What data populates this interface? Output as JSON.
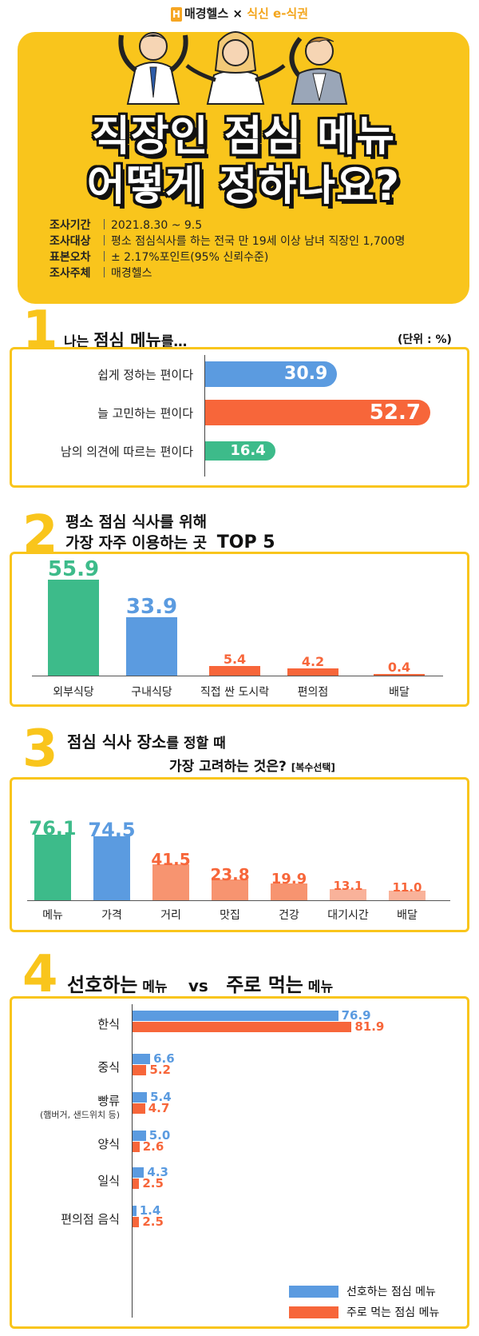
{
  "header": {
    "brand_left": "매경헬스",
    "brand_x": "×",
    "brand_right": "식신 e-식권",
    "title_line1": "직장인 점심 메뉴",
    "title_line2": "어떻게 정하나요?",
    "info": [
      {
        "key": "조사기간",
        "value": "2021.8.30 ~ 9.5"
      },
      {
        "key": "조사대상",
        "value": "평소 점심식사를 하는 전국 만 19세 이상 남녀 직장인 1,700명"
      },
      {
        "key": "표본오차",
        "value": "± 2.17%포인트(95% 신뢰수준)"
      },
      {
        "key": "조사주체",
        "value": "매경헬스"
      }
    ]
  },
  "section1": {
    "number": "1",
    "title_a": "나는 ",
    "title_b": "점심 메뉴",
    "title_c": "를…",
    "unit": "(단위 : %)"
  },
  "section2": {
    "number": "2",
    "title_line1": "평소 점심 식사를 위해",
    "title_line2": "가장 자주 이용하는 곳",
    "title_top": "TOP 5"
  },
  "section3": {
    "number": "3",
    "title_a": "점심 식사 장소",
    "title_b": "를 정할 때",
    "title_line2": "가장 고려하는 것은?",
    "title_note": "[복수선택]"
  },
  "section4": {
    "number": "4",
    "title_a": "선호하는",
    "title_b": " 메뉴",
    "title_vs": "vs",
    "title_c": "주로 먹는",
    "title_d": " 메뉴"
  },
  "chart_data": [
    {
      "type": "bar",
      "orientation": "horizontal",
      "categories": [
        "쉽게 정하는 편이다",
        "늘 고민하는 편이다",
        "남의 의견에 따르는 편이다"
      ],
      "values": [
        30.9,
        52.7,
        16.4
      ],
      "colors": [
        "#5b9be0",
        "#f7663a",
        "#3dbb8a"
      ],
      "title": "나는 점심 메뉴를…",
      "unit": "(단위 : %)"
    },
    {
      "type": "bar",
      "categories": [
        "외부식당",
        "구내식당",
        "직접 싼 도시락",
        "편의점",
        "배달"
      ],
      "values": [
        55.9,
        33.9,
        5.4,
        4.2,
        0.4
      ],
      "colors": [
        "#3dbb8a",
        "#5b9be0",
        "#f7663a",
        "#f7663a",
        "#f7663a"
      ],
      "title": "평소 점심 식사를 위해 가장 자주 이용하는 곳 TOP 5"
    },
    {
      "type": "bar",
      "categories": [
        "메뉴",
        "가격",
        "거리",
        "맛집",
        "건강",
        "대기시간",
        "배달"
      ],
      "values": [
        76.1,
        74.5,
        41.5,
        23.8,
        19.9,
        13.1,
        11.0
      ],
      "colors": [
        "#3dbb8a",
        "#5b9be0",
        "#f79470",
        "#f79470",
        "#f79470",
        "#f9b29a",
        "#f9b29a"
      ],
      "label_colors": [
        "#3dbb8a",
        "#5b9be0",
        "#f7663a",
        "#f7663a",
        "#f7663a",
        "#f7663a",
        "#f7663a"
      ],
      "title": "점심 식사 장소를 정할 때 가장 고려하는 것은? [복수선택]"
    },
    {
      "type": "bar",
      "orientation": "horizontal",
      "categories": [
        "한식",
        "중식",
        "빵류",
        "양식",
        "일식",
        "편의점 음식"
      ],
      "category_notes": [
        "",
        "",
        "(햄버거, 샌드위치 등)",
        "",
        "",
        ""
      ],
      "series": [
        {
          "name": "선호하는 점심 메뉴",
          "values": [
            76.9,
            6.6,
            5.4,
            5.0,
            4.3,
            1.4
          ],
          "color": "#5b9be0"
        },
        {
          "name": "주로 먹는 점심 메뉴",
          "values": [
            81.9,
            5.2,
            4.7,
            2.6,
            2.5,
            2.5
          ],
          "color": "#f7663a"
        }
      ],
      "title": "선호하는 메뉴 vs 주로 먹는 메뉴",
      "legend": "bottom-right"
    }
  ]
}
